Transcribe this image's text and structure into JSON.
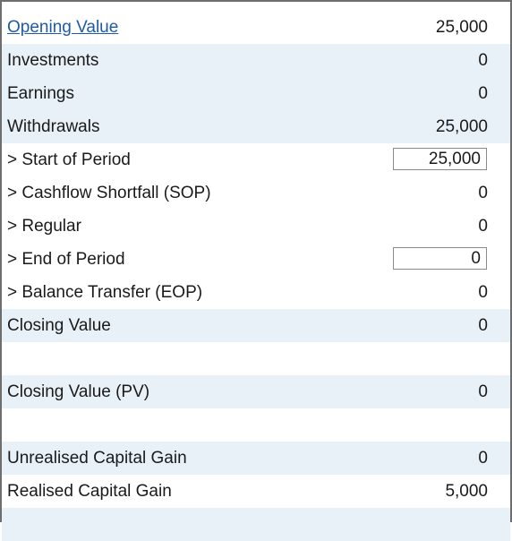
{
  "rows": [
    {
      "label": "Opening Value",
      "value": "25,000"
    },
    {
      "label": "Investments",
      "value": "0"
    },
    {
      "label": "Earnings",
      "value": "0"
    },
    {
      "label": "Withdrawals",
      "value": "25,000"
    },
    {
      "label": "> Start of Period",
      "value": "25,000"
    },
    {
      "label": "> Cashflow Shortfall (SOP)",
      "value": "0"
    },
    {
      "label": "> Regular",
      "value": "0"
    },
    {
      "label": "> End of Period",
      "value": "0"
    },
    {
      "label": "> Balance Transfer (EOP)",
      "value": "0"
    },
    {
      "label": "Closing Value",
      "value": "0"
    },
    {
      "label": "",
      "value": ""
    },
    {
      "label": "Closing Value (PV)",
      "value": "0"
    },
    {
      "label": "",
      "value": ""
    },
    {
      "label": "Unrealised Capital Gain",
      "value": "0"
    },
    {
      "label": "Realised Capital Gain",
      "value": "5,000"
    },
    {
      "label": "",
      "value": ""
    }
  ]
}
